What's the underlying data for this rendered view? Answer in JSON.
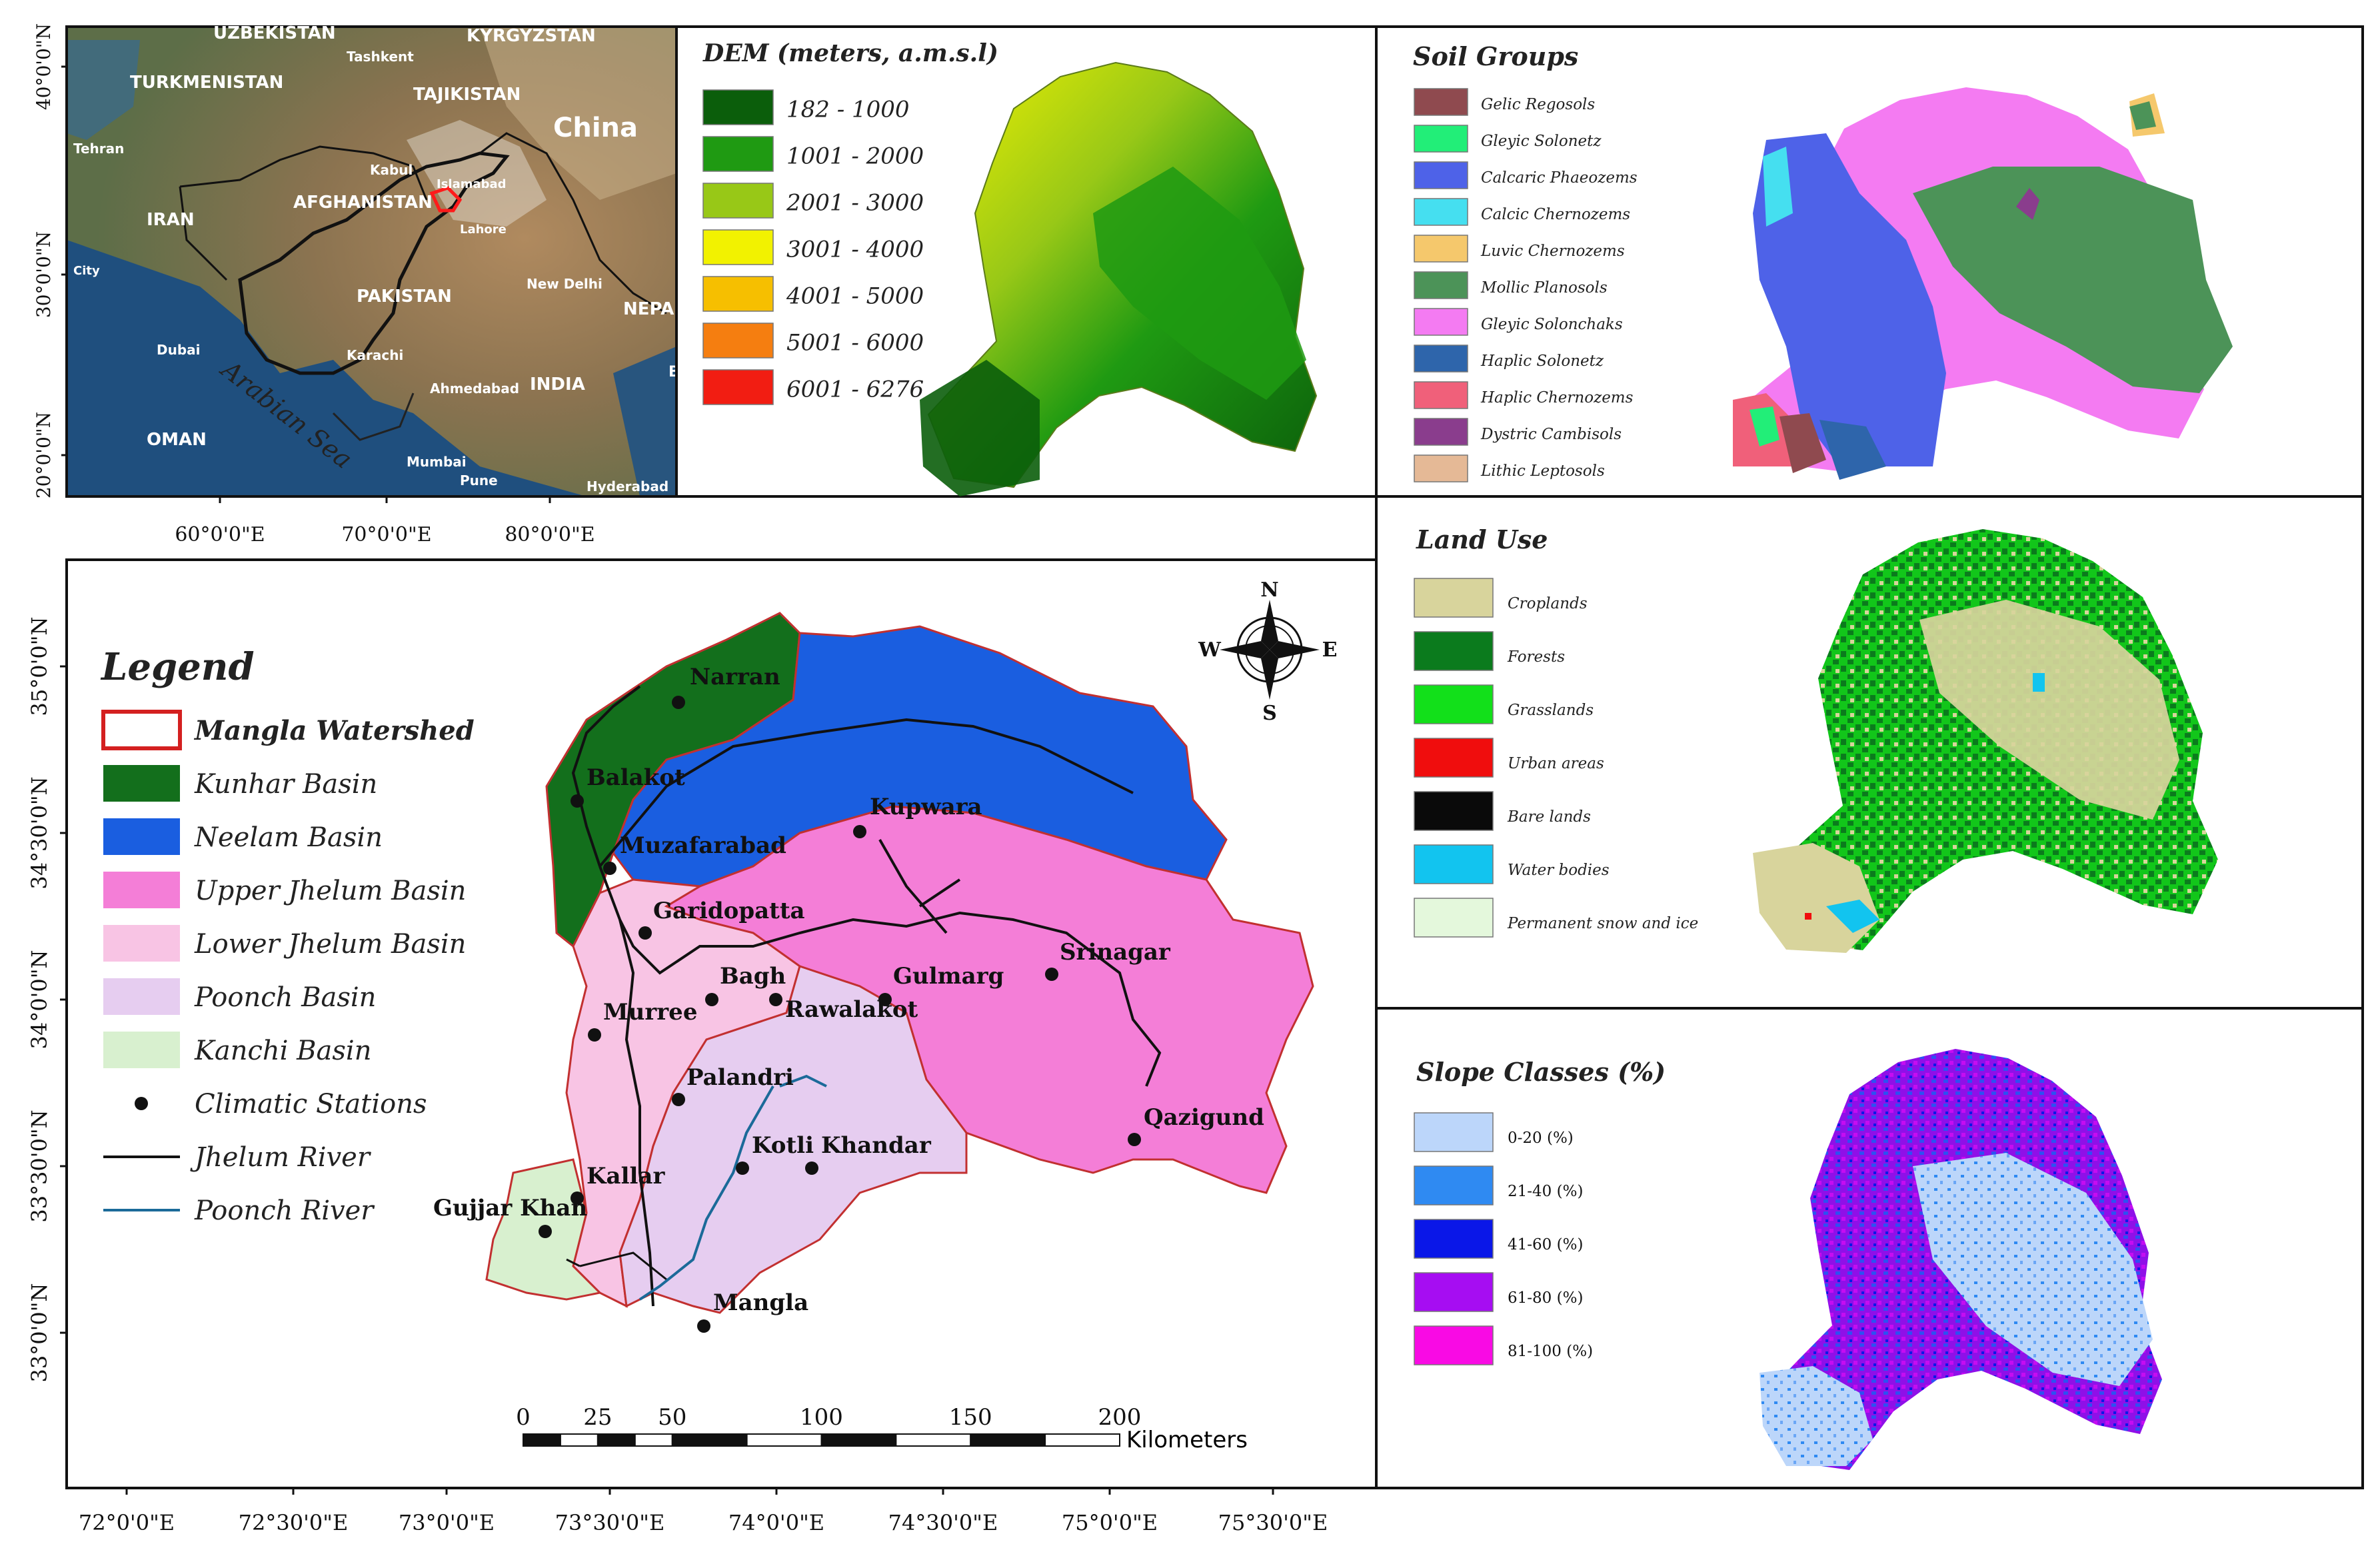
{
  "inset": {
    "lat_labels": [
      "40°0'0\"N",
      "30°0'0\"N",
      "20°0'0\"N"
    ],
    "lon_labels": [
      "60°0'0\"E",
      "70°0'0\"E",
      "80°0'0\"E"
    ],
    "places": [
      {
        "name": "UZBEKISTAN",
        "id": "uzbekistan"
      },
      {
        "name": "KYRGYZSTAN",
        "id": "kyrgyzstan"
      },
      {
        "name": "Tashkent",
        "id": "tashkent"
      },
      {
        "name": "TURKMENISTAN",
        "id": "turkmenistan"
      },
      {
        "name": "TAJIKISTAN",
        "id": "tajikistan"
      },
      {
        "name": "China",
        "id": "china"
      },
      {
        "name": "Tehran",
        "id": "tehran"
      },
      {
        "name": "Kabul",
        "id": "kabul"
      },
      {
        "name": "Islamabad",
        "id": "islamabad"
      },
      {
        "name": "AFGHANISTAN",
        "id": "afghanistan"
      },
      {
        "name": "IRAN",
        "id": "iran"
      },
      {
        "name": "Lahore",
        "id": "lahore"
      },
      {
        "name": "City",
        "id": "city"
      },
      {
        "name": "PAKISTAN",
        "id": "pakistan"
      },
      {
        "name": "New Delhi",
        "id": "new-delhi"
      },
      {
        "name": "NEPAL",
        "id": "nepal"
      },
      {
        "name": "Dubai",
        "id": "dubai"
      },
      {
        "name": "Karachi",
        "id": "karachi"
      },
      {
        "name": "Ahmedabad",
        "id": "ahmedabad"
      },
      {
        "name": "INDIA",
        "id": "india"
      },
      {
        "name": "B",
        "id": "b"
      },
      {
        "name": "OMAN",
        "id": "oman"
      },
      {
        "name": "Mumbai",
        "id": "mumbai"
      },
      {
        "name": "Pune",
        "id": "pune"
      },
      {
        "name": "Hyderabad",
        "id": "hyderabad"
      },
      {
        "name": "Arabian Sea",
        "id": "arabian-sea"
      }
    ]
  },
  "dem": {
    "title": "DEM (meters, a.m.s.l)",
    "classes": [
      {
        "label": "182 - 1000",
        "color": "#0b5e0b"
      },
      {
        "label": "1001 - 2000",
        "color": "#1f9a12"
      },
      {
        "label": "2001 - 3000",
        "color": "#98c817"
      },
      {
        "label": "3001 - 4000",
        "color": "#f2f200"
      },
      {
        "label": "4001 - 5000",
        "color": "#f6bf00"
      },
      {
        "label": "5001 - 6000",
        "color": "#f57e10"
      },
      {
        "label": "6001 - 6276",
        "color": "#f21d12"
      }
    ]
  },
  "soil": {
    "title": "Soil Groups",
    "classes": [
      {
        "label": "Gelic Regosols",
        "color": "#8f4a4f"
      },
      {
        "label": "Gleyic Solonetz",
        "color": "#22ee78"
      },
      {
        "label": "Calcaric Phaeozems",
        "color": "#4e62e8"
      },
      {
        "label": "Calcic Chernozems",
        "color": "#45dff0"
      },
      {
        "label": "Luvic Chernozems",
        "color": "#f5c86c"
      },
      {
        "label": "Mollic Planosols",
        "color": "#4c9358"
      },
      {
        "label": "Gleyic Solonchaks",
        "color": "#f47bf2"
      },
      {
        "label": "Haplic Solonetz",
        "color": "#2e65ab"
      },
      {
        "label": "Haplic Chernozems",
        "color": "#f0607a"
      },
      {
        "label": "Dystric Cambisols",
        "color": "#8a3d8d"
      },
      {
        "label": "Lithic Leptosols",
        "color": "#e5b996"
      }
    ]
  },
  "landuse": {
    "title": "Land Use",
    "classes": [
      {
        "label": "Croplands",
        "color": "#d8d49c"
      },
      {
        "label": "Forests",
        "color": "#0b7b1d"
      },
      {
        "label": "Grasslands",
        "color": "#12e01a"
      },
      {
        "label": "Urban areas",
        "color": "#f00d0d"
      },
      {
        "label": "Bare lands",
        "color": "#0a0a0a"
      },
      {
        "label": "Water bodies",
        "color": "#12c4ef"
      },
      {
        "label": "Permanent snow and ice",
        "color": "#e4f8dc"
      }
    ]
  },
  "slope": {
    "title": "Slope Classes (%)",
    "classes": [
      {
        "label": "0-20 (%)",
        "color": "#bcd6fa"
      },
      {
        "label": "21-40 (%)",
        "color": "#2f8af2"
      },
      {
        "label": "41-60 (%)",
        "color": "#0a17e8"
      },
      {
        "label": "61-80 (%)",
        "color": "#a60df2"
      },
      {
        "label": "81-100 (%)",
        "color": "#f90ae4"
      }
    ]
  },
  "main": {
    "lat_labels": [
      "35°0'0\"N",
      "34°30'0\"N",
      "34°0'0\"N",
      "33°30'0\"N",
      "33°0'0\"N"
    ],
    "lon_labels": [
      "72°0'0\"E",
      "72°30'0\"E",
      "73°0'0\"E",
      "73°30'0\"E",
      "74°0'0\"E",
      "74°30'0\"E",
      "75°0'0\"E",
      "75°30'0\"E"
    ],
    "legend_title": "Legend",
    "legend_items": [
      {
        "label": "Mangla Watershed",
        "kind": "outline",
        "color": "#d42020"
      },
      {
        "label": "Kunhar Basin",
        "kind": "fill",
        "color": "#136f1c"
      },
      {
        "label": "Neelam Basin",
        "kind": "fill",
        "color": "#1a5ee0"
      },
      {
        "label": "Upper Jhelum Basin",
        "kind": "fill",
        "color": "#f47ed7"
      },
      {
        "label": "Lower Jhelum Basin",
        "kind": "fill",
        "color": "#f8c4e4"
      },
      {
        "label": "Poonch Basin",
        "kind": "fill",
        "color": "#e6cdf0"
      },
      {
        "label": "Kanchi Basin",
        "kind": "fill",
        "color": "#d8f0cf"
      },
      {
        "label": "Climatic Stations",
        "kind": "dot",
        "color": "#111111"
      },
      {
        "label": "Jhelum River",
        "kind": "line",
        "color": "#111111"
      },
      {
        "label": "Poonch River",
        "kind": "line",
        "color": "#1b6a99"
      }
    ],
    "stations": [
      "Narran",
      "Balakot",
      "Muzafarabad",
      "Kupwara",
      "Garidopatta",
      "Bagh",
      "Gulmarg",
      "Srinagar",
      "Murree",
      "Rawalakot",
      "Palandri",
      "Qazigund",
      "Kotli",
      "Khandar",
      "Kallar",
      "Gujjar Khan",
      "Mangla"
    ],
    "compass": {
      "n": "N",
      "s": "S",
      "e": "E",
      "w": "W"
    },
    "scale_ticks": [
      "0",
      "25",
      "50",
      "100",
      "150",
      "200"
    ],
    "scale_unit": "Kilometers"
  }
}
